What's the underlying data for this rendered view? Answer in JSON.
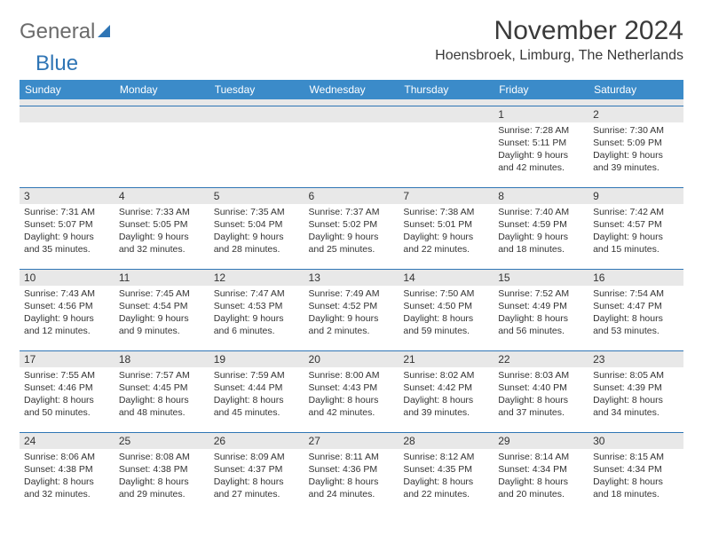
{
  "logo": {
    "word1": "General",
    "word2": "Blue"
  },
  "title": "November 2024",
  "location": "Hoensbroek, Limburg, The Netherlands",
  "colors": {
    "header_bg": "#3b8bc9",
    "accent": "#2f75b5",
    "daynum_bg": "#e8e8e8",
    "text": "#333333"
  },
  "dayNames": [
    "Sunday",
    "Monday",
    "Tuesday",
    "Wednesday",
    "Thursday",
    "Friday",
    "Saturday"
  ],
  "grid": [
    [
      null,
      null,
      null,
      null,
      null,
      {
        "n": "1",
        "sr": "7:28 AM",
        "ss": "5:11 PM",
        "dl": "9 hours and 42 minutes."
      },
      {
        "n": "2",
        "sr": "7:30 AM",
        "ss": "5:09 PM",
        "dl": "9 hours and 39 minutes."
      }
    ],
    [
      {
        "n": "3",
        "sr": "7:31 AM",
        "ss": "5:07 PM",
        "dl": "9 hours and 35 minutes."
      },
      {
        "n": "4",
        "sr": "7:33 AM",
        "ss": "5:05 PM",
        "dl": "9 hours and 32 minutes."
      },
      {
        "n": "5",
        "sr": "7:35 AM",
        "ss": "5:04 PM",
        "dl": "9 hours and 28 minutes."
      },
      {
        "n": "6",
        "sr": "7:37 AM",
        "ss": "5:02 PM",
        "dl": "9 hours and 25 minutes."
      },
      {
        "n": "7",
        "sr": "7:38 AM",
        "ss": "5:01 PM",
        "dl": "9 hours and 22 minutes."
      },
      {
        "n": "8",
        "sr": "7:40 AM",
        "ss": "4:59 PM",
        "dl": "9 hours and 18 minutes."
      },
      {
        "n": "9",
        "sr": "7:42 AM",
        "ss": "4:57 PM",
        "dl": "9 hours and 15 minutes."
      }
    ],
    [
      {
        "n": "10",
        "sr": "7:43 AM",
        "ss": "4:56 PM",
        "dl": "9 hours and 12 minutes."
      },
      {
        "n": "11",
        "sr": "7:45 AM",
        "ss": "4:54 PM",
        "dl": "9 hours and 9 minutes."
      },
      {
        "n": "12",
        "sr": "7:47 AM",
        "ss": "4:53 PM",
        "dl": "9 hours and 6 minutes."
      },
      {
        "n": "13",
        "sr": "7:49 AM",
        "ss": "4:52 PM",
        "dl": "9 hours and 2 minutes."
      },
      {
        "n": "14",
        "sr": "7:50 AM",
        "ss": "4:50 PM",
        "dl": "8 hours and 59 minutes."
      },
      {
        "n": "15",
        "sr": "7:52 AM",
        "ss": "4:49 PM",
        "dl": "8 hours and 56 minutes."
      },
      {
        "n": "16",
        "sr": "7:54 AM",
        "ss": "4:47 PM",
        "dl": "8 hours and 53 minutes."
      }
    ],
    [
      {
        "n": "17",
        "sr": "7:55 AM",
        "ss": "4:46 PM",
        "dl": "8 hours and 50 minutes."
      },
      {
        "n": "18",
        "sr": "7:57 AM",
        "ss": "4:45 PM",
        "dl": "8 hours and 48 minutes."
      },
      {
        "n": "19",
        "sr": "7:59 AM",
        "ss": "4:44 PM",
        "dl": "8 hours and 45 minutes."
      },
      {
        "n": "20",
        "sr": "8:00 AM",
        "ss": "4:43 PM",
        "dl": "8 hours and 42 minutes."
      },
      {
        "n": "21",
        "sr": "8:02 AM",
        "ss": "4:42 PM",
        "dl": "8 hours and 39 minutes."
      },
      {
        "n": "22",
        "sr": "8:03 AM",
        "ss": "4:40 PM",
        "dl": "8 hours and 37 minutes."
      },
      {
        "n": "23",
        "sr": "8:05 AM",
        "ss": "4:39 PM",
        "dl": "8 hours and 34 minutes."
      }
    ],
    [
      {
        "n": "24",
        "sr": "8:06 AM",
        "ss": "4:38 PM",
        "dl": "8 hours and 32 minutes."
      },
      {
        "n": "25",
        "sr": "8:08 AM",
        "ss": "4:38 PM",
        "dl": "8 hours and 29 minutes."
      },
      {
        "n": "26",
        "sr": "8:09 AM",
        "ss": "4:37 PM",
        "dl": "8 hours and 27 minutes."
      },
      {
        "n": "27",
        "sr": "8:11 AM",
        "ss": "4:36 PM",
        "dl": "8 hours and 24 minutes."
      },
      {
        "n": "28",
        "sr": "8:12 AM",
        "ss": "4:35 PM",
        "dl": "8 hours and 22 minutes."
      },
      {
        "n": "29",
        "sr": "8:14 AM",
        "ss": "4:34 PM",
        "dl": "8 hours and 20 minutes."
      },
      {
        "n": "30",
        "sr": "8:15 AM",
        "ss": "4:34 PM",
        "dl": "8 hours and 18 minutes."
      }
    ]
  ],
  "labels": {
    "sunrise": "Sunrise: ",
    "sunset": "Sunset: ",
    "daylight": "Daylight: "
  }
}
